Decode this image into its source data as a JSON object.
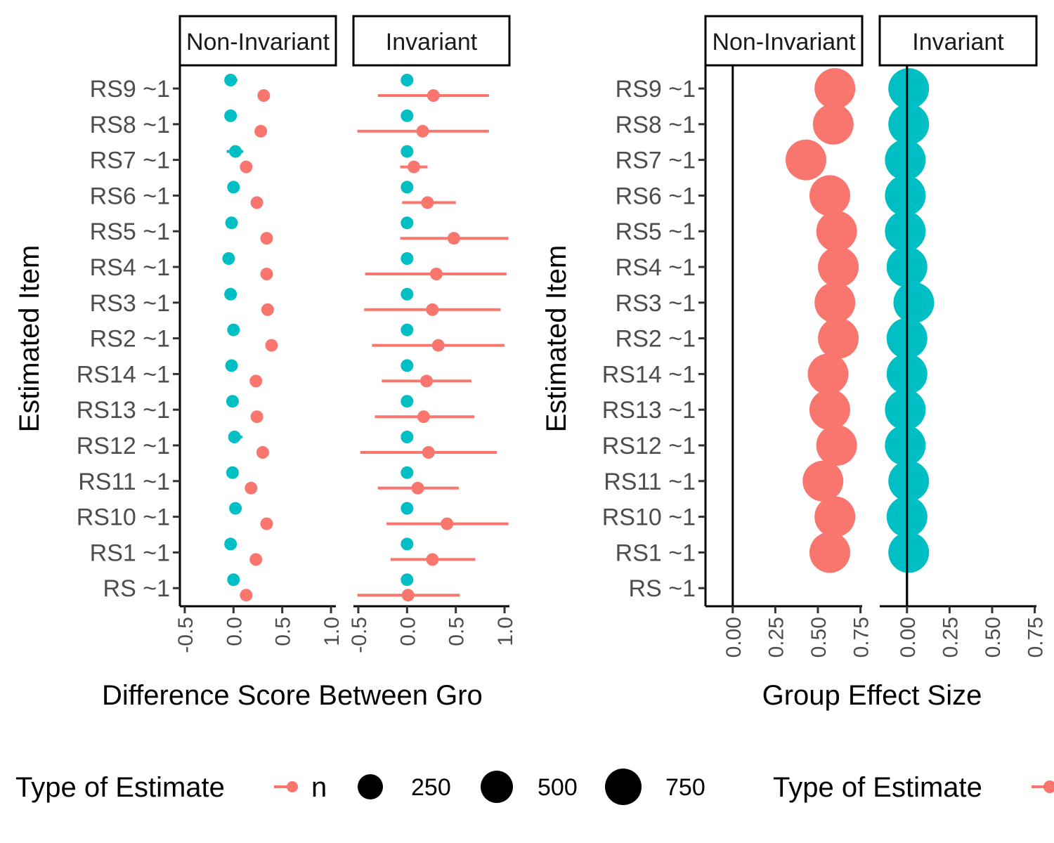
{
  "colors": {
    "Non-Invariant": "#F8766D",
    "Invariant": "#00BFC4"
  },
  "legend": {
    "title": "Type of Estimate",
    "n_title": "n",
    "size_labels": [
      "250",
      "500",
      "750"
    ]
  },
  "chart_data": [
    {
      "type": "scatter",
      "subtype": "dot-and-whisker, faceted",
      "facets": [
        "Non-Invariant",
        "Invariant"
      ],
      "ylabel": "Estimated Item",
      "xlabel": "Difference Score Between Groups",
      "xlabel_visible": "Difference Score Between Gro",
      "categories": [
        "RS9 ~1",
        "RS8 ~1",
        "RS7 ~1",
        "RS6 ~1",
        "RS5 ~1",
        "RS4 ~1",
        "RS3 ~1",
        "RS2 ~1",
        "RS14 ~1",
        "RS13 ~1",
        "RS12 ~1",
        "RS11 ~1",
        "RS10 ~1",
        "RS1 ~1",
        "RS ~1"
      ],
      "xlim": [
        -0.55,
        1.05
      ],
      "xticks": [
        -0.5,
        0.0,
        0.5,
        1.0
      ],
      "xtick_labels": [
        "-0.5",
        "0.0",
        "0.5",
        "1.0"
      ],
      "legend": "bottom",
      "series": [
        {
          "facet": "Non-Invariant",
          "Non-Invariant": {
            "estimate": [
              0.31,
              0.28,
              0.13,
              0.24,
              0.34,
              0.34,
              0.35,
              0.39,
              0.23,
              0.24,
              0.3,
              0.18,
              0.34,
              0.23,
              0.13
            ],
            "lower": [
              0.29,
              0.26,
              0.11,
              0.22,
              0.31,
              0.32,
              0.32,
              0.34,
              0.21,
              0.22,
              0.28,
              0.16,
              0.31,
              0.21,
              0.11
            ],
            "upper": [
              0.33,
              0.3,
              0.15,
              0.26,
              0.37,
              0.36,
              0.38,
              0.44,
              0.25,
              0.26,
              0.32,
              0.2,
              0.37,
              0.25,
              0.15
            ]
          },
          "Invariant": {
            "estimate": [
              -0.03,
              -0.03,
              0.02,
              0.0,
              -0.02,
              -0.05,
              -0.03,
              0.0,
              -0.02,
              -0.01,
              0.01,
              -0.01,
              0.02,
              -0.03,
              0.0
            ],
            "lower": [
              -0.09,
              -0.06,
              -0.07,
              -0.03,
              -0.04,
              -0.06,
              -0.05,
              -0.02,
              -0.04,
              -0.03,
              -0.05,
              -0.04,
              0.01,
              -0.05,
              -0.02
            ],
            "upper": [
              0.04,
              0.0,
              0.1,
              0.04,
              0.0,
              -0.04,
              -0.01,
              0.02,
              0.0,
              0.01,
              0.09,
              0.03,
              0.03,
              -0.01,
              0.02
            ]
          }
        },
        {
          "facet": "Invariant",
          "Non-Invariant": {
            "estimate": [
              0.27,
              0.16,
              0.07,
              0.21,
              0.48,
              0.3,
              0.26,
              0.32,
              0.2,
              0.17,
              0.22,
              0.11,
              0.41,
              0.26,
              0.01
            ],
            "lower": [
              -0.3,
              -0.51,
              -0.07,
              -0.05,
              -0.07,
              -0.43,
              -0.44,
              -0.36,
              -0.26,
              -0.33,
              -0.48,
              -0.3,
              -0.21,
              -0.17,
              -0.51
            ],
            "upper": [
              0.84,
              0.84,
              0.21,
              0.5,
              1.04,
              1.02,
              0.96,
              1.0,
              0.66,
              0.69,
              0.92,
              0.53,
              1.04,
              0.7,
              0.54
            ]
          },
          "Invariant": {
            "estimate": [
              0.0,
              0.0,
              0.0,
              0.0,
              0.0,
              0.0,
              0.0,
              0.0,
              0.0,
              0.0,
              0.0,
              0.0,
              0.0,
              0.0,
              0.0
            ]
          }
        }
      ]
    },
    {
      "type": "scatter",
      "subtype": "dot plot sized by n, faceted",
      "facets": [
        "Non-Invariant",
        "Invariant"
      ],
      "ylabel": "Estimated Item",
      "xlabel": "Group Effect Size",
      "categories": [
        "RS9 ~1",
        "RS8 ~1",
        "RS7 ~1",
        "RS6 ~1",
        "RS5 ~1",
        "RS4 ~1",
        "RS3 ~1",
        "RS2 ~1",
        "RS14 ~1",
        "RS13 ~1",
        "RS12 ~1",
        "RS11 ~1",
        "RS10 ~1",
        "RS1 ~1",
        "RS ~1"
      ],
      "xlim": [
        -0.16,
        0.76
      ],
      "xticks": [
        0.0,
        0.25,
        0.5,
        0.75
      ],
      "xtick_labels": [
        "0.00",
        "0.25",
        "0.50",
        "0.75"
      ],
      "reference_line_x": 0,
      "legend": "bottom",
      "series": [
        {
          "facet": "Non-Invariant",
          "name": "Non-Invariant",
          "values": [
            0.6,
            0.59,
            0.43,
            0.57,
            0.61,
            0.62,
            0.6,
            0.62,
            0.56,
            0.57,
            0.61,
            0.53,
            0.6,
            0.57,
            null
          ]
        },
        {
          "facet": "Invariant",
          "name": "Invariant",
          "values": [
            0.01,
            0.01,
            -0.01,
            -0.01,
            -0.01,
            0.0,
            0.04,
            0.0,
            0.0,
            -0.01,
            -0.01,
            0.01,
            0.0,
            0.01,
            null
          ]
        }
      ]
    }
  ]
}
